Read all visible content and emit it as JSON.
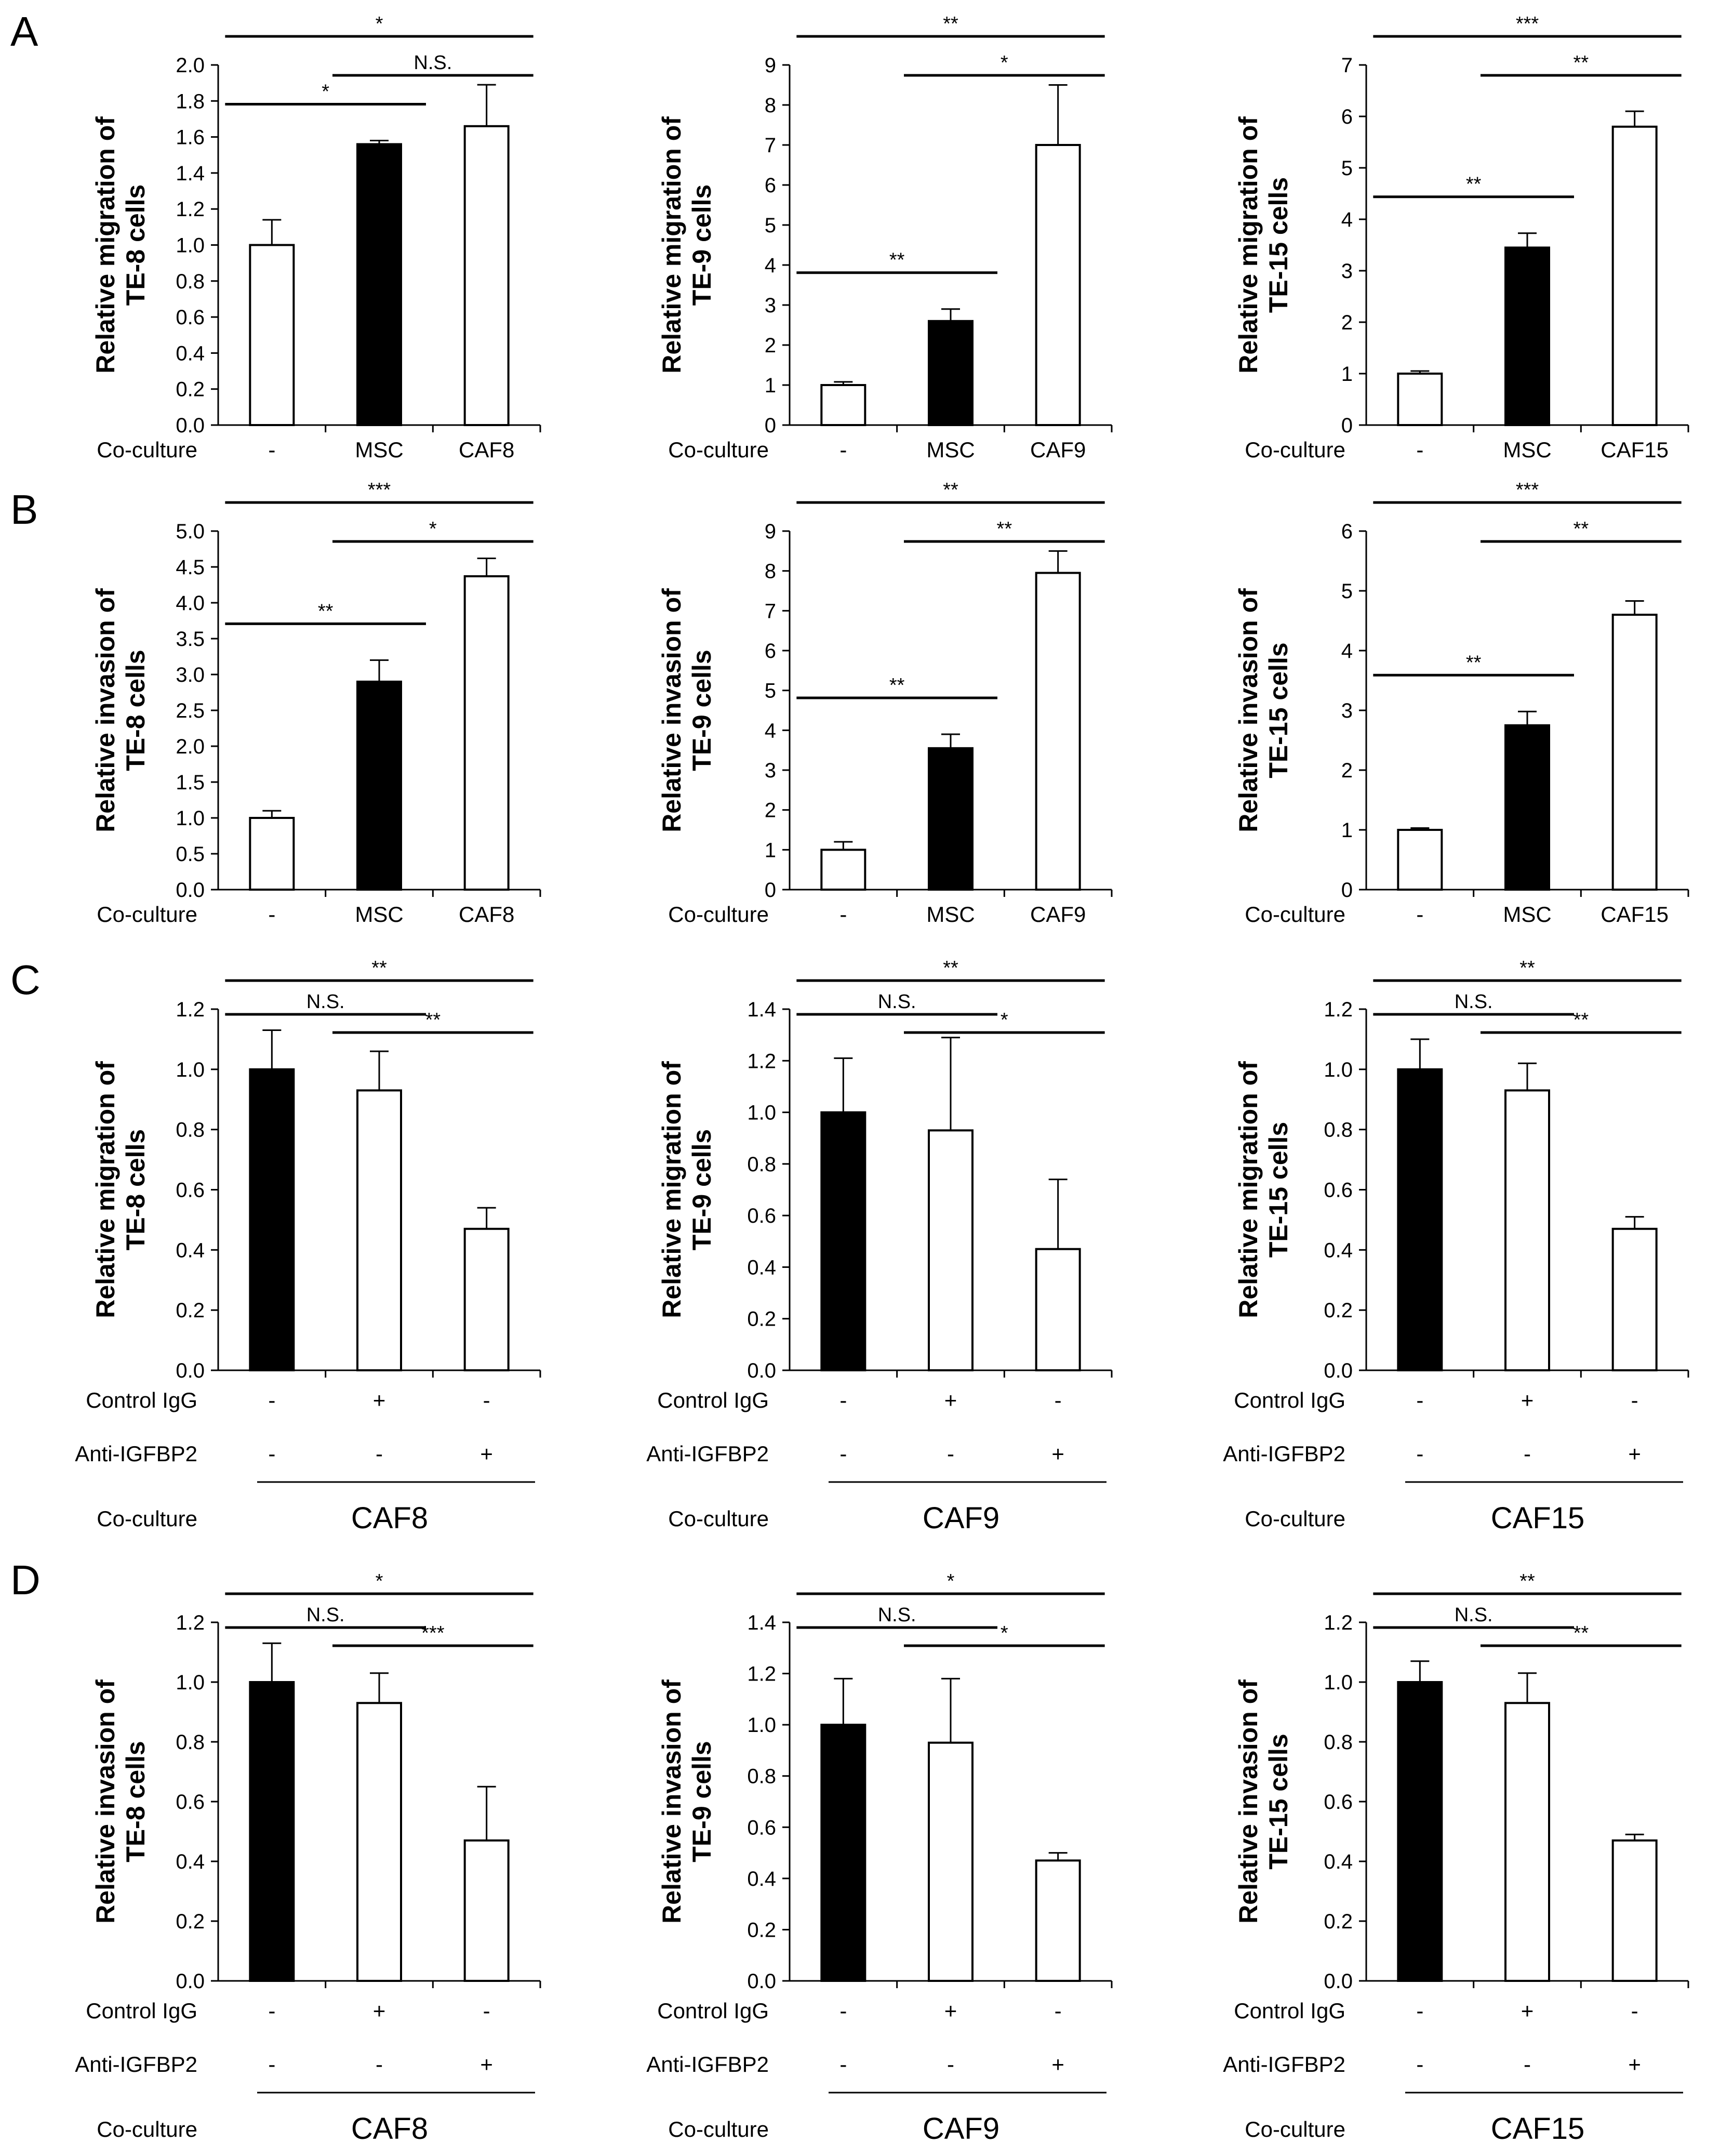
{
  "panels": [
    {
      "letter": "A"
    },
    {
      "letter": "B"
    },
    {
      "letter": "C"
    },
    {
      "letter": "D"
    }
  ],
  "chart_data": [
    {
      "type": "bar",
      "panel": "A",
      "title": "",
      "ylabel": [
        "Relative migration of",
        "TE-8 cells"
      ],
      "ylim": [
        0,
        2.0
      ],
      "yticks": [
        "0.0",
        "0.2",
        "0.4",
        "0.6",
        "0.8",
        "1.0",
        "1.2",
        "1.4",
        "1.6",
        "1.8",
        "2.0"
      ],
      "rows": [
        {
          "label": "Co-culture",
          "values": [
            "-",
            "MSC",
            "CAF8"
          ]
        }
      ],
      "group_label": "",
      "values": [
        1.0,
        1.56,
        1.66
      ],
      "errors": [
        0.14,
        0.02,
        0.23
      ],
      "fill": [
        "white",
        "black",
        "white"
      ],
      "significance": [
        {
          "from": 0,
          "to": 2,
          "label": "*"
        },
        {
          "from": 1,
          "to": 2,
          "label": "N.S."
        },
        {
          "from": 0,
          "to": 1,
          "label": "*"
        }
      ]
    },
    {
      "type": "bar",
      "panel": "A",
      "ylabel": [
        "Relative migration of",
        "TE-9 cells"
      ],
      "ylim": [
        0,
        9
      ],
      "yticks": [
        "0",
        "1",
        "2",
        "3",
        "4",
        "5",
        "6",
        "7",
        "8",
        "9"
      ],
      "rows": [
        {
          "label": "Co-culture",
          "values": [
            "-",
            "MSC",
            "CAF9"
          ]
        }
      ],
      "group_label": "",
      "values": [
        1.0,
        2.6,
        7.0
      ],
      "errors": [
        0.08,
        0.3,
        1.5
      ],
      "fill": [
        "white",
        "black",
        "white"
      ],
      "significance": [
        {
          "from": 0,
          "to": 2,
          "label": "**"
        },
        {
          "from": 1,
          "to": 2,
          "label": "*"
        },
        {
          "from": 0,
          "to": 1,
          "label": "**"
        }
      ]
    },
    {
      "type": "bar",
      "panel": "A",
      "ylabel": [
        "Relative migration of",
        "TE-15 cells"
      ],
      "ylim": [
        0,
        7
      ],
      "yticks": [
        "0",
        "1",
        "2",
        "3",
        "4",
        "5",
        "6",
        "7"
      ],
      "rows": [
        {
          "label": "Co-culture",
          "values": [
            "-",
            "MSC",
            "CAF15"
          ]
        }
      ],
      "group_label": "",
      "values": [
        1.0,
        3.45,
        5.8
      ],
      "errors": [
        0.05,
        0.28,
        0.3
      ],
      "fill": [
        "white",
        "black",
        "white"
      ],
      "significance": [
        {
          "from": 0,
          "to": 2,
          "label": "***"
        },
        {
          "from": 1,
          "to": 2,
          "label": "**"
        },
        {
          "from": 0,
          "to": 1,
          "label": "**"
        }
      ]
    },
    {
      "type": "bar",
      "panel": "B",
      "ylabel": [
        "Relative invasion of",
        "TE-8 cells"
      ],
      "ylim": [
        0,
        5.0
      ],
      "yticks": [
        "0.0",
        "0.5",
        "1.0",
        "1.5",
        "2.0",
        "2.5",
        "3.0",
        "3.5",
        "4.0",
        "4.5",
        "5.0"
      ],
      "rows": [
        {
          "label": "Co-culture",
          "values": [
            "-",
            "MSC",
            "CAF8"
          ]
        }
      ],
      "group_label": "",
      "values": [
        1.0,
        2.9,
        4.37
      ],
      "errors": [
        0.1,
        0.3,
        0.25
      ],
      "fill": [
        "white",
        "black",
        "white"
      ],
      "significance": [
        {
          "from": 0,
          "to": 2,
          "label": "***"
        },
        {
          "from": 1,
          "to": 2,
          "label": "*"
        },
        {
          "from": 0,
          "to": 1,
          "label": "**"
        }
      ]
    },
    {
      "type": "bar",
      "panel": "B",
      "ylabel": [
        "Relative invasion of",
        "TE-9 cells"
      ],
      "ylim": [
        0,
        9
      ],
      "yticks": [
        "0",
        "1",
        "2",
        "3",
        "4",
        "5",
        "6",
        "7",
        "8",
        "9"
      ],
      "rows": [
        {
          "label": "Co-culture",
          "values": [
            "-",
            "MSC",
            "CAF9"
          ]
        }
      ],
      "group_label": "",
      "values": [
        1.0,
        3.55,
        7.95
      ],
      "errors": [
        0.2,
        0.35,
        0.55
      ],
      "fill": [
        "white",
        "black",
        "white"
      ],
      "significance": [
        {
          "from": 0,
          "to": 2,
          "label": "**"
        },
        {
          "from": 1,
          "to": 2,
          "label": "**"
        },
        {
          "from": 0,
          "to": 1,
          "label": "**"
        }
      ]
    },
    {
      "type": "bar",
      "panel": "B",
      "ylabel": [
        "Relative invasion of",
        "TE-15 cells"
      ],
      "ylim": [
        0,
        6
      ],
      "yticks": [
        "0",
        "1",
        "2",
        "3",
        "4",
        "5",
        "6"
      ],
      "rows": [
        {
          "label": "Co-culture",
          "values": [
            "-",
            "MSC",
            "CAF15"
          ]
        }
      ],
      "group_label": "",
      "values": [
        1.0,
        2.75,
        4.6
      ],
      "errors": [
        0.03,
        0.23,
        0.23
      ],
      "fill": [
        "white",
        "black",
        "white"
      ],
      "significance": [
        {
          "from": 0,
          "to": 2,
          "label": "***"
        },
        {
          "from": 1,
          "to": 2,
          "label": "**"
        },
        {
          "from": 0,
          "to": 1,
          "label": "**"
        }
      ]
    },
    {
      "type": "bar",
      "panel": "C",
      "ylabel": [
        "Relative migration of",
        "TE-8 cells"
      ],
      "ylim": [
        0,
        1.2
      ],
      "yticks": [
        "0.0",
        "0.2",
        "0.4",
        "0.6",
        "0.8",
        "1.0",
        "1.2"
      ],
      "rows": [
        {
          "label": "Control IgG",
          "values": [
            "-",
            "+",
            "-"
          ]
        },
        {
          "label": "Anti-IGFBP2",
          "values": [
            "-",
            "-",
            "+"
          ]
        }
      ],
      "coculture_label": "Co-culture",
      "group_label": "CAF8",
      "values": [
        1.0,
        0.93,
        0.47
      ],
      "errors": [
        0.13,
        0.13,
        0.07
      ],
      "fill": [
        "black",
        "white",
        "white"
      ],
      "significance": [
        {
          "from": 0,
          "to": 2,
          "label": "**"
        },
        {
          "from": 0,
          "to": 1,
          "label": "N.S."
        },
        {
          "from": 1,
          "to": 2,
          "label": "**"
        }
      ]
    },
    {
      "type": "bar",
      "panel": "C",
      "ylabel": [
        "Relative migration of",
        "TE-9 cells"
      ],
      "ylim": [
        0,
        1.4
      ],
      "yticks": [
        "0.0",
        "0.2",
        "0.4",
        "0.6",
        "0.8",
        "1.0",
        "1.2",
        "1.4"
      ],
      "rows": [
        {
          "label": "Control IgG",
          "values": [
            "-",
            "+",
            "-"
          ]
        },
        {
          "label": "Anti-IGFBP2",
          "values": [
            "-",
            "-",
            "+"
          ]
        }
      ],
      "coculture_label": "Co-culture",
      "group_label": "CAF9",
      "values": [
        1.0,
        0.93,
        0.47
      ],
      "errors": [
        0.21,
        0.36,
        0.27
      ],
      "fill": [
        "black",
        "white",
        "white"
      ],
      "significance": [
        {
          "from": 0,
          "to": 2,
          "label": "**"
        },
        {
          "from": 0,
          "to": 1,
          "label": "N.S."
        },
        {
          "from": 1,
          "to": 2,
          "label": "*"
        }
      ]
    },
    {
      "type": "bar",
      "panel": "C",
      "ylabel": [
        "Relative migration of",
        "TE-15 cells"
      ],
      "ylim": [
        0,
        1.2
      ],
      "yticks": [
        "0.0",
        "0.2",
        "0.4",
        "0.6",
        "0.8",
        "1.0",
        "1.2"
      ],
      "rows": [
        {
          "label": "Control IgG",
          "values": [
            "-",
            "+",
            "-"
          ]
        },
        {
          "label": "Anti-IGFBP2",
          "values": [
            "-",
            "-",
            "+"
          ]
        }
      ],
      "coculture_label": "Co-culture",
      "group_label": "CAF15",
      "values": [
        1.0,
        0.93,
        0.47
      ],
      "errors": [
        0.1,
        0.09,
        0.04
      ],
      "fill": [
        "black",
        "white",
        "white"
      ],
      "significance": [
        {
          "from": 0,
          "to": 2,
          "label": "**"
        },
        {
          "from": 0,
          "to": 1,
          "label": "N.S."
        },
        {
          "from": 1,
          "to": 2,
          "label": "**"
        }
      ]
    },
    {
      "type": "bar",
      "panel": "D",
      "ylabel": [
        "Relative invasion of",
        "TE-8 cells"
      ],
      "ylim": [
        0,
        1.2
      ],
      "yticks": [
        "0.0",
        "0.2",
        "0.4",
        "0.6",
        "0.8",
        "1.0",
        "1.2"
      ],
      "rows": [
        {
          "label": "Control IgG",
          "values": [
            "-",
            "+",
            "-"
          ]
        },
        {
          "label": "Anti-IGFBP2",
          "values": [
            "-",
            "-",
            "+"
          ]
        }
      ],
      "coculture_label": "Co-culture",
      "group_label": "CAF8",
      "values": [
        1.0,
        0.93,
        0.47
      ],
      "errors": [
        0.13,
        0.1,
        0.18
      ],
      "fill": [
        "black",
        "white",
        "white"
      ],
      "significance": [
        {
          "from": 0,
          "to": 2,
          "label": "*"
        },
        {
          "from": 0,
          "to": 1,
          "label": "N.S."
        },
        {
          "from": 1,
          "to": 2,
          "label": "***"
        }
      ]
    },
    {
      "type": "bar",
      "panel": "D",
      "ylabel": [
        "Relative invasion of",
        "TE-9 cells"
      ],
      "ylim": [
        0,
        1.4
      ],
      "yticks": [
        "0.0",
        "0.2",
        "0.4",
        "0.6",
        "0.8",
        "1.0",
        "1.2",
        "1.4"
      ],
      "rows": [
        {
          "label": "Control IgG",
          "values": [
            "-",
            "+",
            "-"
          ]
        },
        {
          "label": "Anti-IGFBP2",
          "values": [
            "-",
            "-",
            "+"
          ]
        }
      ],
      "coculture_label": "Co-culture",
      "group_label": "CAF9",
      "values": [
        1.0,
        0.93,
        0.47
      ],
      "errors": [
        0.18,
        0.25,
        0.03
      ],
      "fill": [
        "black",
        "white",
        "white"
      ],
      "significance": [
        {
          "from": 0,
          "to": 2,
          "label": "*"
        },
        {
          "from": 0,
          "to": 1,
          "label": "N.S."
        },
        {
          "from": 1,
          "to": 2,
          "label": "*"
        }
      ]
    },
    {
      "type": "bar",
      "panel": "D",
      "ylabel": [
        "Relative invasion of",
        "TE-15 cells"
      ],
      "ylim": [
        0,
        1.2
      ],
      "yticks": [
        "0.0",
        "0.2",
        "0.4",
        "0.6",
        "0.8",
        "1.0",
        "1.2"
      ],
      "rows": [
        {
          "label": "Control IgG",
          "values": [
            "-",
            "+",
            "-"
          ]
        },
        {
          "label": "Anti-IGFBP2",
          "values": [
            "-",
            "-",
            "+"
          ]
        }
      ],
      "coculture_label": "Co-culture",
      "group_label": "CAF15",
      "values": [
        1.0,
        0.93,
        0.47
      ],
      "errors": [
        0.07,
        0.1,
        0.02
      ],
      "fill": [
        "black",
        "white",
        "white"
      ],
      "significance": [
        {
          "from": 0,
          "to": 2,
          "label": "**"
        },
        {
          "from": 0,
          "to": 1,
          "label": "N.S."
        },
        {
          "from": 1,
          "to": 2,
          "label": "**"
        }
      ]
    }
  ]
}
